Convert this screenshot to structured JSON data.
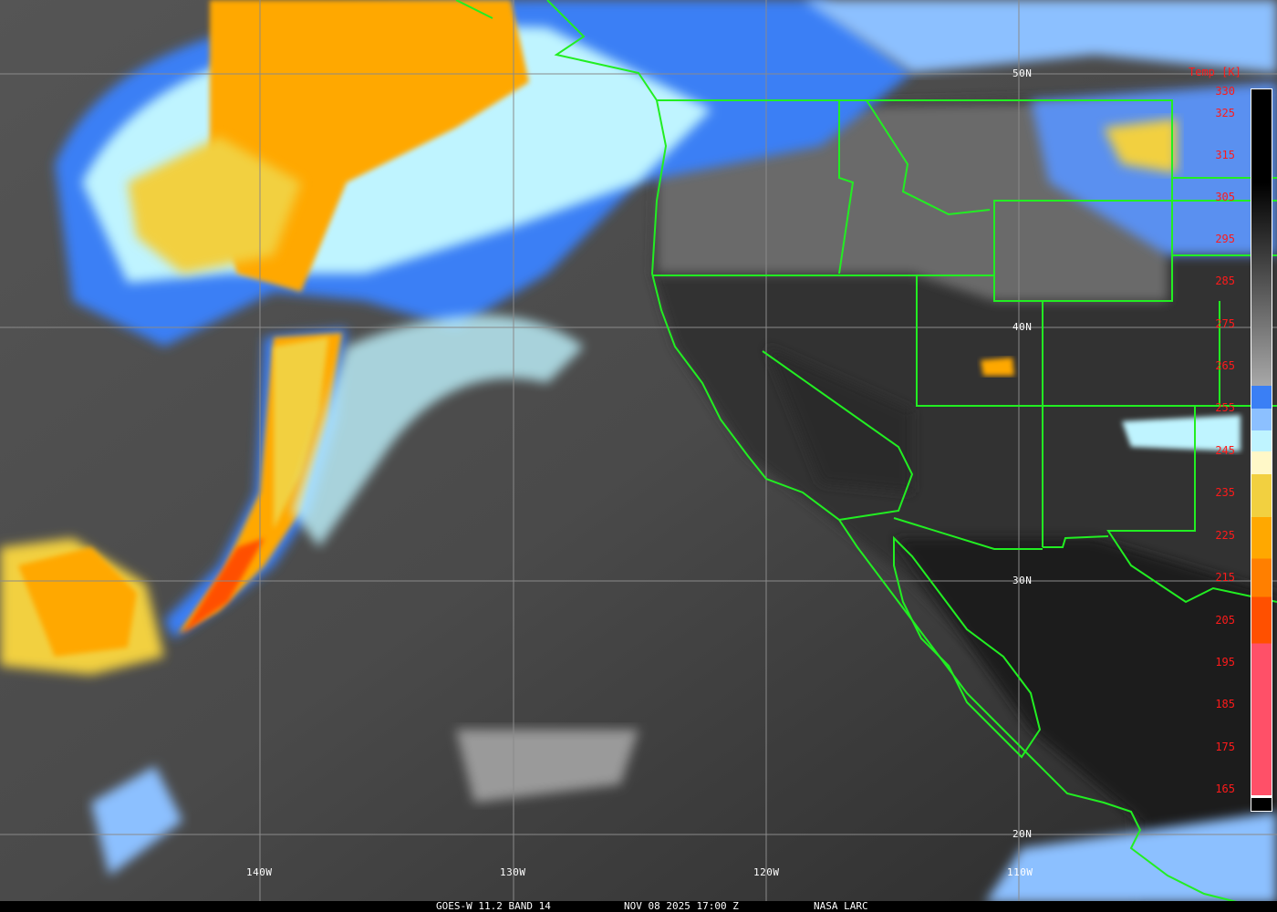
{
  "caption": {
    "satellite_band": "GOES-W 11.2 BAND 14",
    "datetime": "NOV 08 2025 17:00 Z",
    "credit": "NASA LARC"
  },
  "grid": {
    "longitudes": [
      "140W",
      "130W",
      "120W",
      "110W"
    ],
    "latitudes": [
      "50N",
      "40N",
      "30N",
      "20N"
    ]
  },
  "colorbar": {
    "title": "Temp [K]",
    "ticks": [
      "330",
      "325",
      "315",
      "305",
      "295",
      "285",
      "275",
      "265",
      "255",
      "245",
      "235",
      "225",
      "215",
      "205",
      "195",
      "185",
      "175",
      "165"
    ],
    "colors": {
      "warm_top": "#000000",
      "warm_bottom": "#a8a8a8",
      "blue": "#3a7ff5",
      "light_blue": "#8cc0ff",
      "cyan": "#bff4ff",
      "cream": "#fff8c8",
      "yellow": "#f2d040",
      "orange": "#ffa800",
      "dark_orange": "#ff7f00",
      "red_orange": "#ff5000",
      "pink": "#ff5068"
    }
  },
  "colors": {
    "borders": "#22ee22",
    "gridlines": "#8a8a8a"
  }
}
